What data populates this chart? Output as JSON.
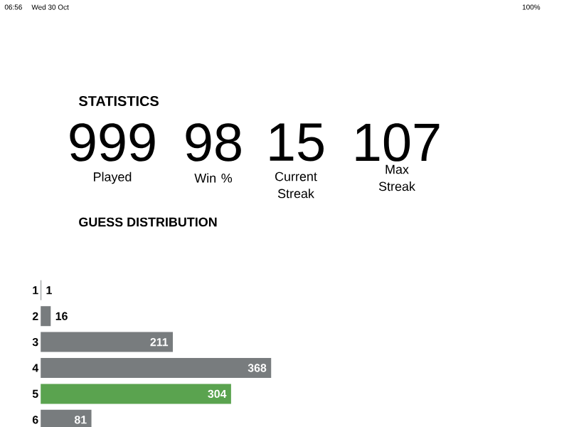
{
  "chart_data": {
    "type": "bar",
    "orientation": "horizontal",
    "title": "GUESS DISTRIBUTION",
    "categories": [
      "1",
      "2",
      "3",
      "4",
      "5",
      "6"
    ],
    "values": [
      1,
      16,
      211,
      368,
      304,
      81
    ],
    "colors": [
      "#787c7e",
      "#787c7e",
      "#787c7e",
      "#787c7e",
      "#5aa34f",
      "#787c7e"
    ],
    "data_labels": true,
    "annotations": [
      "06:56",
      "Wed 30 Oct",
      "100%",
      "STATISTICS",
      "999",
      "Played",
      "98",
      "Win %",
      "15",
      "Current Streak",
      "107",
      "Max Streak"
    ]
  }
}
